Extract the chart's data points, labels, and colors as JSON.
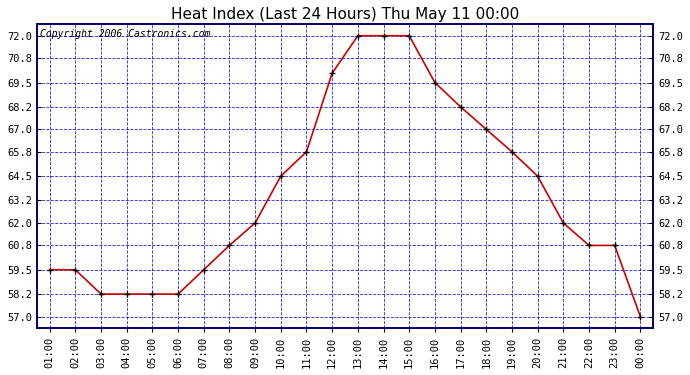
{
  "title": "Heat Index (Last 24 Hours) Thu May 11 00:00",
  "copyright": "Copyright 2006 Castronics.com",
  "x_labels": [
    "01:00",
    "02:00",
    "03:00",
    "04:00",
    "05:00",
    "06:00",
    "07:00",
    "08:00",
    "09:00",
    "10:00",
    "11:00",
    "12:00",
    "13:00",
    "14:00",
    "15:00",
    "16:00",
    "17:00",
    "18:00",
    "19:00",
    "20:00",
    "21:00",
    "22:00",
    "23:00",
    "00:00"
  ],
  "y_values": [
    59.5,
    59.5,
    58.2,
    58.2,
    58.2,
    58.2,
    59.5,
    60.8,
    62.0,
    64.5,
    65.8,
    70.0,
    72.0,
    72.0,
    72.0,
    69.5,
    68.2,
    67.0,
    65.8,
    64.5,
    62.0,
    60.8,
    60.8,
    57.0
  ],
  "yticks": [
    57.0,
    58.2,
    59.5,
    60.8,
    62.0,
    63.2,
    64.5,
    65.8,
    67.0,
    68.2,
    69.5,
    70.8,
    72.0
  ],
  "ylim": [
    56.4,
    72.6
  ],
  "line_color": "#cc0000",
  "marker_color": "#000000",
  "bg_color": "#ffffff",
  "grid_color": "#0000cc",
  "title_fontsize": 11,
  "copyright_fontsize": 7,
  "tick_fontsize": 7.5,
  "figsize": [
    6.9,
    3.75
  ],
  "dpi": 100
}
